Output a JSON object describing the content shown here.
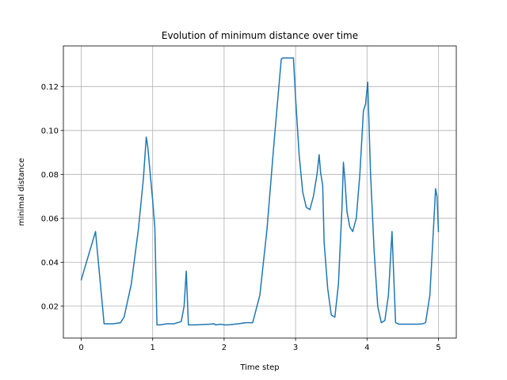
{
  "chart_data": {
    "type": "line",
    "title": "Evolution of minimum distance over time",
    "xlabel": "Time step",
    "ylabel": "minimal distance",
    "xlim": [
      -0.25,
      5.25
    ],
    "ylim": [
      0.0055,
      0.1385
    ],
    "xticks": [
      0,
      1,
      2,
      3,
      4,
      5
    ],
    "xtick_labels": [
      "0",
      "1",
      "2",
      "3",
      "4",
      "5"
    ],
    "yticks": [
      0.02,
      0.04,
      0.06,
      0.08,
      0.1,
      0.12
    ],
    "ytick_labels": [
      "0.02",
      "0.04",
      "0.06",
      "0.08",
      "0.10",
      "0.12"
    ],
    "grid": true,
    "series": [
      {
        "color": "#1f77b4",
        "x": [
          0,
          0.2,
          0.32,
          0.45,
          0.55,
          0.6,
          0.7,
          0.8,
          0.87,
          0.91,
          0.93,
          1.0,
          1.03,
          1.06,
          1.1,
          1.2,
          1.3,
          1.4,
          1.44,
          1.47,
          1.5,
          1.6,
          1.8,
          1.86,
          1.88,
          1.95,
          2.0,
          2.05,
          2.2,
          2.3,
          2.4,
          2.5,
          2.6,
          2.7,
          2.8,
          2.82,
          2.9,
          2.97,
          3.0,
          3.05,
          3.1,
          3.15,
          3.2,
          3.25,
          3.3,
          3.33,
          3.35,
          3.38,
          3.4,
          3.45,
          3.5,
          3.55,
          3.6,
          3.65,
          3.67,
          3.69,
          3.72,
          3.76,
          3.8,
          3.85,
          3.9,
          3.95,
          3.98,
          4.01,
          4.05,
          4.1,
          4.15,
          4.2,
          4.25,
          4.3,
          4.35,
          4.4,
          4.45,
          4.5,
          4.7,
          4.78,
          4.82,
          4.88,
          4.93,
          4.96,
          4.98,
          5.0
        ],
        "y": [
          0.032,
          0.054,
          0.012,
          0.012,
          0.0125,
          0.015,
          0.03,
          0.055,
          0.078,
          0.097,
          0.093,
          0.068,
          0.056,
          0.0115,
          0.0115,
          0.012,
          0.012,
          0.013,
          0.02,
          0.036,
          0.0115,
          0.0115,
          0.0118,
          0.012,
          0.0115,
          0.0118,
          0.0115,
          0.0115,
          0.012,
          0.0125,
          0.0125,
          0.025,
          0.055,
          0.095,
          0.1325,
          0.133,
          0.133,
          0.133,
          0.115,
          0.089,
          0.072,
          0.065,
          0.064,
          0.07,
          0.08,
          0.089,
          0.081,
          0.075,
          0.049,
          0.028,
          0.016,
          0.015,
          0.03,
          0.065,
          0.0855,
          0.078,
          0.063,
          0.056,
          0.054,
          0.06,
          0.08,
          0.109,
          0.112,
          0.122,
          0.08,
          0.045,
          0.02,
          0.0125,
          0.0135,
          0.025,
          0.054,
          0.0125,
          0.0118,
          0.0118,
          0.0118,
          0.012,
          0.0125,
          0.025,
          0.055,
          0.0735,
          0.07,
          0.054
        ]
      }
    ]
  }
}
